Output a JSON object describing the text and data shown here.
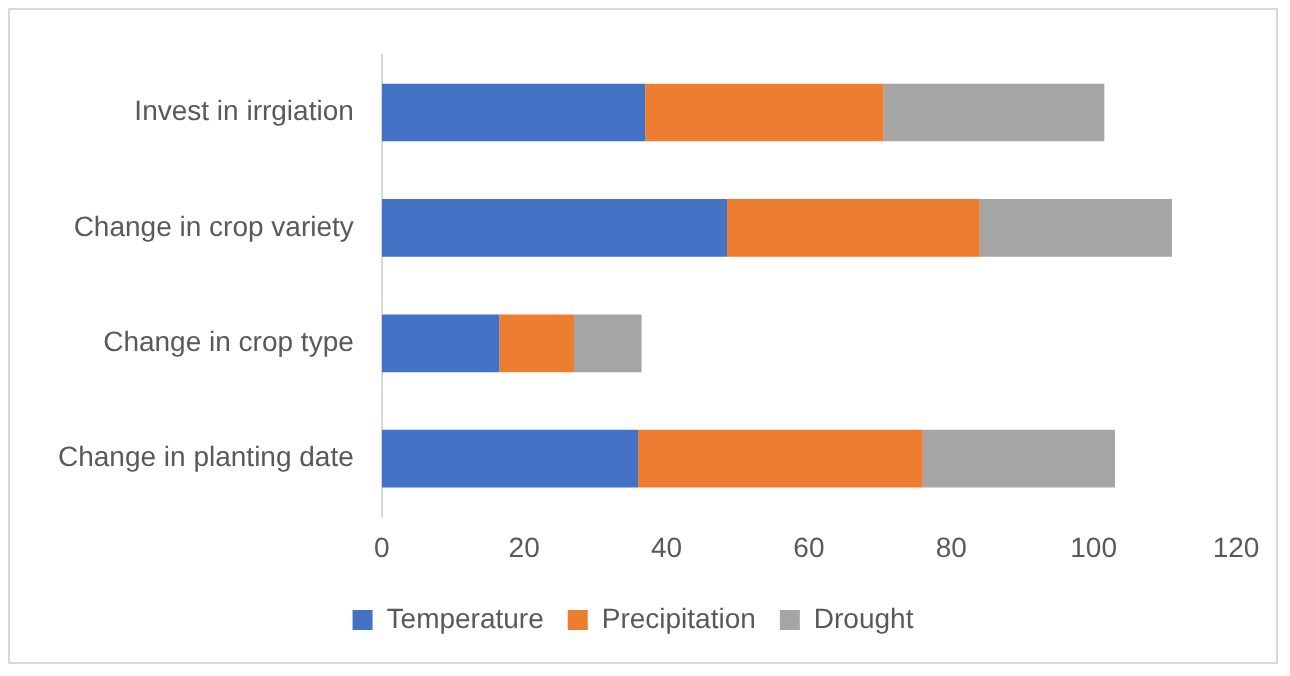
{
  "chart_data": {
    "type": "bar",
    "orientation": "horizontal",
    "stacked": true,
    "categories": [
      "Invest in irrgiation",
      "Change in crop variety",
      "Change in crop type",
      "Change in planting date"
    ],
    "series": [
      {
        "name": "Temperature",
        "color": "#4472c4",
        "values": [
          37,
          48.5,
          16.5,
          36
        ]
      },
      {
        "name": "Precipitation",
        "color": "#ed7d31",
        "values": [
          33.5,
          35.5,
          10.5,
          40
        ]
      },
      {
        "name": "Drought",
        "color": "#a5a5a5",
        "values": [
          31,
          27,
          9.5,
          27
        ]
      }
    ],
    "xlim": [
      0,
      120
    ],
    "xticks": [
      0,
      20,
      40,
      60,
      80,
      100,
      120
    ],
    "grid": false,
    "legend": "bottom"
  }
}
